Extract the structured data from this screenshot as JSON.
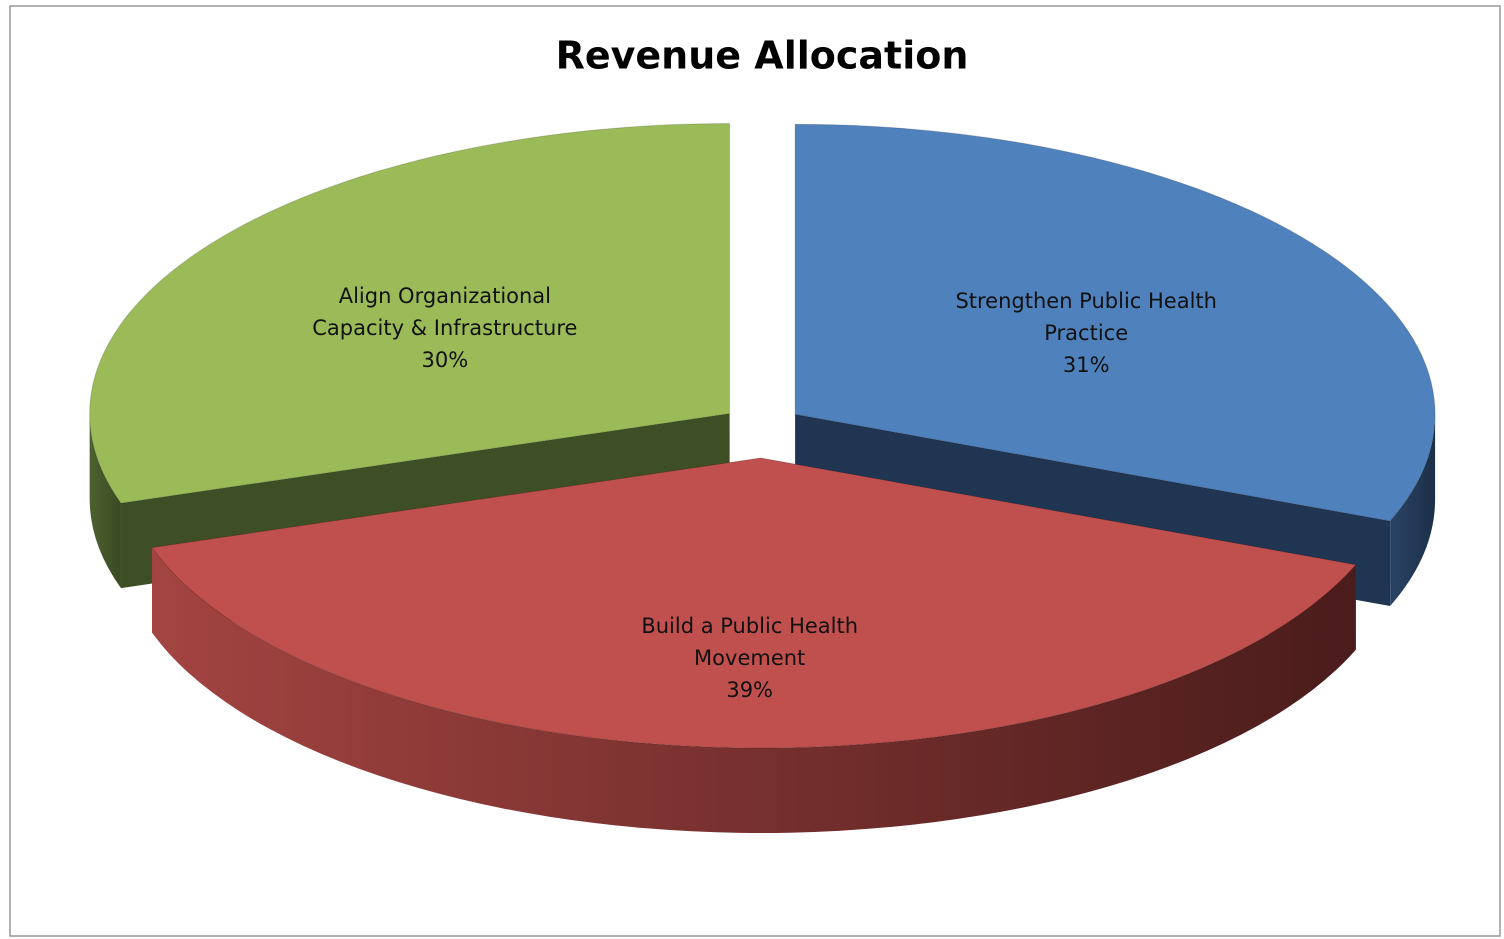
{
  "chart_data": {
    "type": "pie3d",
    "title": "Revenue Allocation",
    "categories": [
      "Strengthen Public Health Practice",
      "Build a Public Health Movement",
      "Align Organizational Capacity & Infrastructure"
    ],
    "values": [
      31,
      39,
      30
    ],
    "value_labels": [
      "31%",
      "39%",
      "30%"
    ],
    "colors": [
      "#4f81bd",
      "#c0504d",
      "#9bbb59"
    ]
  }
}
